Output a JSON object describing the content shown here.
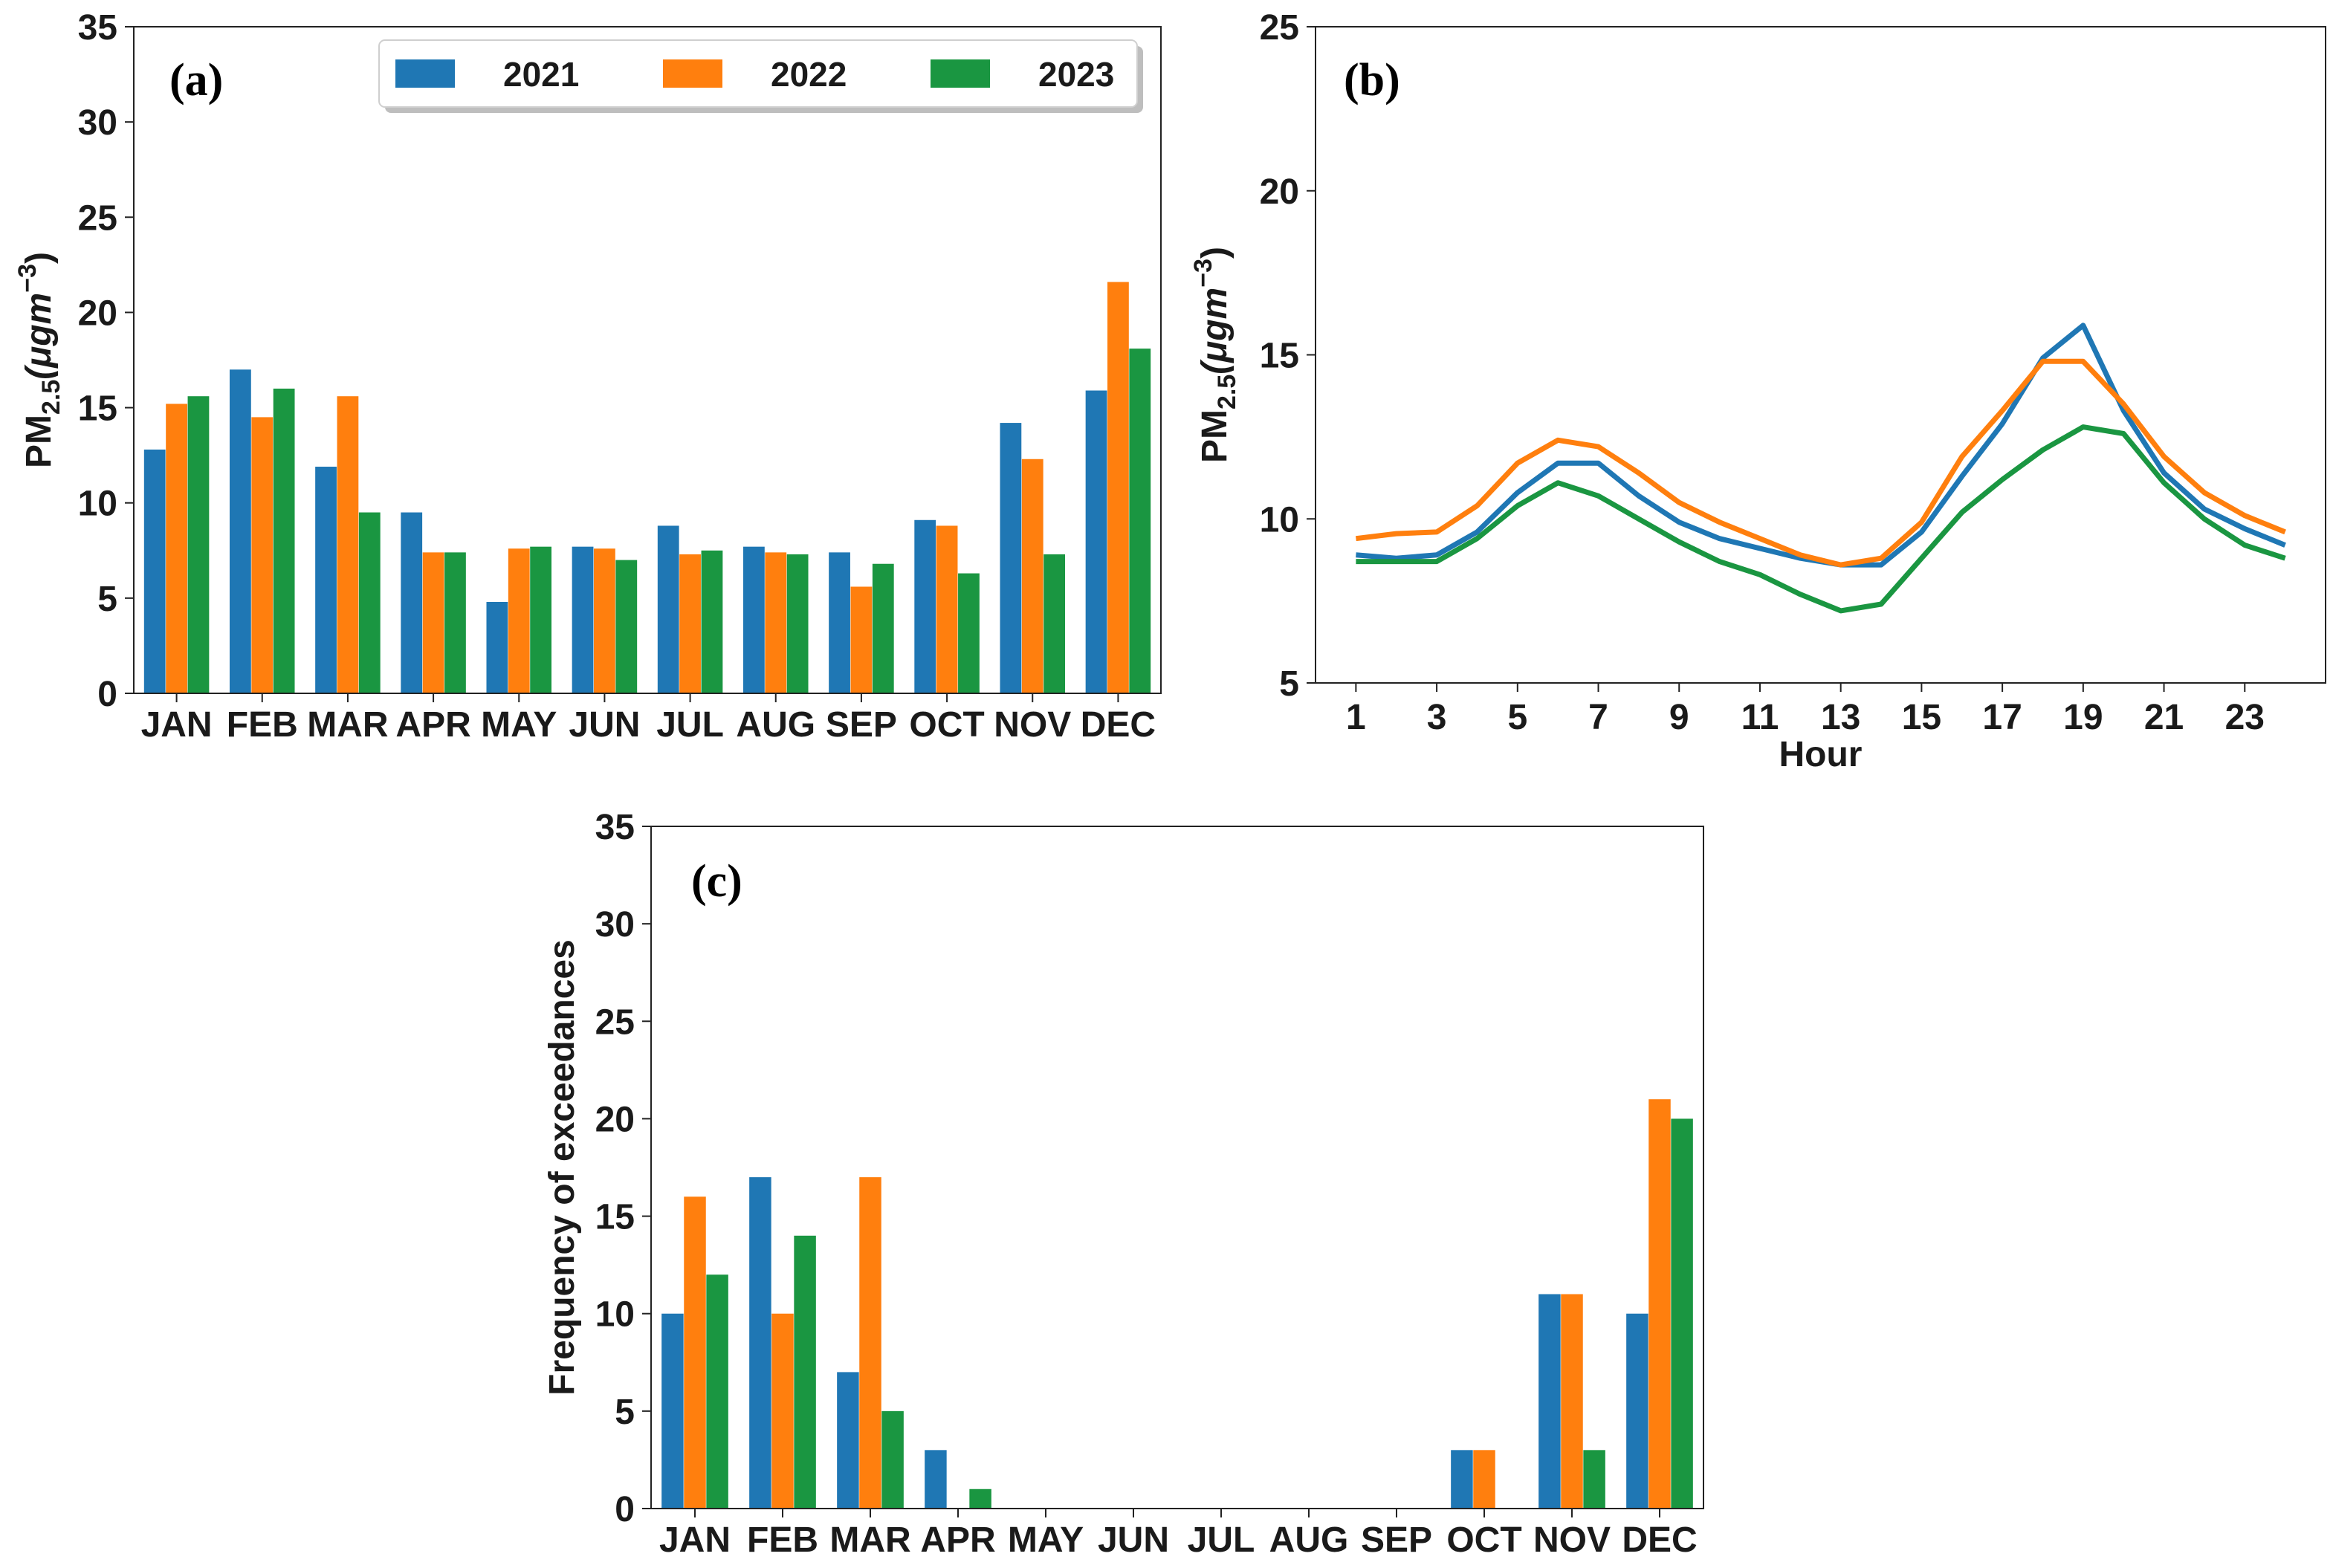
{
  "colors": {
    "2021": "#1f77b4",
    "2022": "#ff7f0e",
    "2023": "#1a9641"
  },
  "chart_data": [
    {
      "type": "bar",
      "panel_label": "(a)",
      "ylabel_main": "PM",
      "ylabel_sub": "2.5",
      "ylabel_unit": "(μgm",
      "ylabel_sup": "−3",
      "ylabel_close": ")",
      "ylim": [
        0,
        35
      ],
      "yticks": [
        0,
        5,
        10,
        15,
        20,
        25,
        30,
        35
      ],
      "categories": [
        "JAN",
        "FEB",
        "MAR",
        "APR",
        "MAY",
        "JUN",
        "JUL",
        "AUG",
        "SEP",
        "OCT",
        "NOV",
        "DEC"
      ],
      "legend_position": "top-right",
      "series": [
        {
          "name": "2021",
          "values": [
            12.8,
            17.0,
            11.9,
            9.5,
            4.8,
            7.7,
            8.8,
            7.7,
            7.4,
            9.1,
            14.2,
            15.9
          ]
        },
        {
          "name": "2022",
          "values": [
            15.2,
            14.5,
            15.6,
            7.4,
            7.6,
            7.6,
            7.3,
            7.4,
            5.6,
            8.8,
            12.3,
            21.6
          ]
        },
        {
          "name": "2023",
          "values": [
            15.6,
            16.0,
            9.5,
            7.4,
            7.7,
            7.0,
            7.5,
            7.3,
            6.8,
            6.3,
            7.3,
            18.1
          ]
        }
      ]
    },
    {
      "type": "line",
      "panel_label": "(b)",
      "ylabel_main": "PM",
      "ylabel_sub": "2.5",
      "ylabel_unit": "(μgm",
      "ylabel_sup": "−3",
      "ylabel_close": ")",
      "xlabel": "Hour",
      "ylim": [
        5,
        25
      ],
      "yticks": [
        5,
        10,
        15,
        20,
        25
      ],
      "xlim": [
        0,
        25
      ],
      "xticks": [
        1,
        3,
        5,
        7,
        9,
        11,
        13,
        15,
        17,
        19,
        21,
        23
      ],
      "x": [
        1,
        2,
        3,
        4,
        5,
        6,
        7,
        8,
        9,
        10,
        11,
        12,
        13,
        14,
        15,
        16,
        17,
        18,
        19,
        20,
        21,
        22,
        23,
        24
      ],
      "series": [
        {
          "name": "2021",
          "values": [
            8.9,
            8.8,
            8.9,
            9.6,
            10.8,
            11.7,
            11.7,
            10.7,
            9.9,
            9.4,
            9.1,
            8.8,
            8.6,
            8.6,
            9.6,
            11.3,
            12.9,
            14.9,
            15.9,
            13.3,
            11.4,
            10.3,
            9.7,
            9.2
          ]
        },
        {
          "name": "2022",
          "values": [
            9.4,
            9.55,
            9.6,
            10.4,
            11.7,
            12.4,
            12.2,
            11.4,
            10.5,
            9.9,
            9.4,
            8.9,
            8.6,
            8.8,
            9.9,
            11.9,
            13.3,
            14.8,
            14.8,
            13.5,
            11.9,
            10.8,
            10.1,
            9.6
          ]
        },
        {
          "name": "2023",
          "values": [
            8.7,
            8.7,
            8.7,
            9.4,
            10.4,
            11.1,
            10.7,
            10.0,
            9.3,
            8.7,
            8.3,
            7.7,
            7.2,
            7.4,
            8.8,
            10.2,
            11.2,
            12.1,
            12.8,
            12.6,
            11.1,
            10.0,
            9.2,
            8.8
          ]
        }
      ]
    },
    {
      "type": "bar",
      "panel_label": "(c)",
      "ylabel": "Frequency of exceedances",
      "ylim": [
        0,
        35
      ],
      "yticks": [
        0,
        5,
        10,
        15,
        20,
        25,
        30,
        35
      ],
      "categories": [
        "JAN",
        "FEB",
        "MAR",
        "APR",
        "MAY",
        "JUN",
        "JUL",
        "AUG",
        "SEP",
        "OCT",
        "NOV",
        "DEC"
      ],
      "series": [
        {
          "name": "2021",
          "values": [
            10,
            17,
            7,
            3,
            0,
            0,
            0,
            0,
            0,
            3,
            11,
            10
          ]
        },
        {
          "name": "2022",
          "values": [
            16,
            10,
            17,
            0,
            0,
            0,
            0,
            0,
            0,
            3,
            11,
            21
          ]
        },
        {
          "name": "2023",
          "values": [
            12,
            14,
            5,
            1,
            0,
            0,
            0,
            0,
            0,
            0,
            3,
            20
          ]
        }
      ]
    }
  ]
}
